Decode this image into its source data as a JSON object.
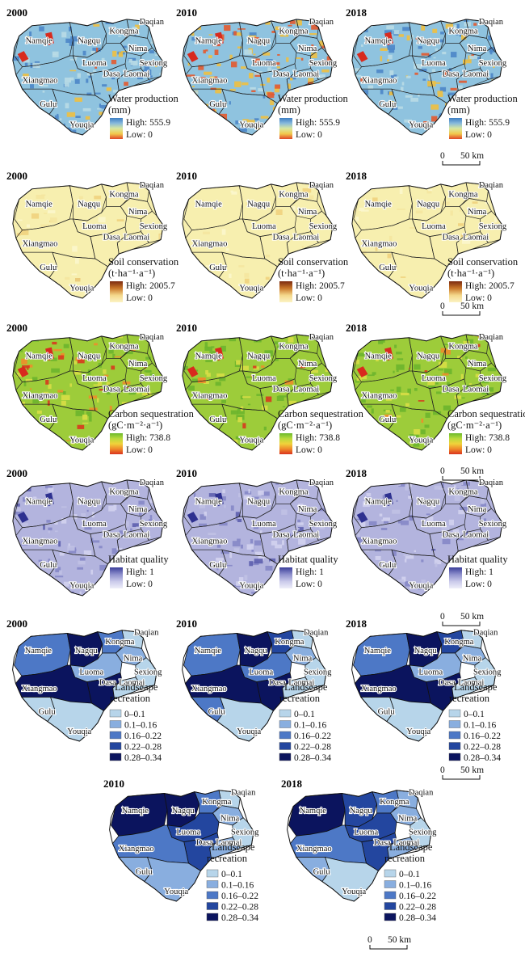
{
  "rows": [
    {
      "id": "water",
      "legend_title": "Water production",
      "legend_unit": "(mm)",
      "high": "High: 555.9",
      "low": "Low: 0",
      "colors": [
        "#3f7fc4",
        "#86b9dc",
        "#d8e8a0",
        "#f2c94c",
        "#e0472a"
      ],
      "base_color": "#8fc3df",
      "patch_colors": [
        "#4d86c8",
        "#f0c040",
        "#e35a2f",
        "#b9dbe6"
      ],
      "maps": [
        {
          "year": "2000",
          "patches": [
            0.45,
            0.18,
            0.05,
            0.32
          ]
        },
        {
          "year": "2010",
          "patches": [
            0.12,
            0.48,
            0.32,
            0.08
          ]
        },
        {
          "year": "2018",
          "patches": [
            0.38,
            0.22,
            0.08,
            0.32
          ]
        }
      ],
      "scale_under": 2
    },
    {
      "id": "soil",
      "legend_title": "Soil conservation",
      "legend_unit": "(t·ha⁻¹·a⁻¹)",
      "high": "High: 2005.7",
      "low": "Low: 0",
      "colors": [
        "#7b2a10",
        "#c9772a",
        "#f4d88a",
        "#fbf3c4"
      ],
      "base_color": "#f7efaf",
      "patch_colors": [
        "#efd27e",
        "#f4e6a0",
        "#fbf6cc",
        "#e9c777"
      ],
      "maps": [
        {
          "year": "2000",
          "patches": [
            0.06,
            0.1,
            0.1,
            0.02
          ]
        },
        {
          "year": "2010",
          "patches": [
            0.06,
            0.1,
            0.1,
            0.02
          ]
        },
        {
          "year": "2018",
          "patches": [
            0.06,
            0.1,
            0.1,
            0.02
          ]
        }
      ],
      "scale_under": 2
    },
    {
      "id": "carbon",
      "legend_title": "Carbon sequestration",
      "legend_unit": "(gC·m⁻²·a⁻¹)",
      "high": "High: 738.8",
      "low": "Low: 0",
      "colors": [
        "#6bb92e",
        "#b8da3c",
        "#f0d23a",
        "#ef8a2a",
        "#d9321e"
      ],
      "base_color": "#9dcc3a",
      "patch_colors": [
        "#6db52e",
        "#d8de46",
        "#ee8d2b",
        "#d83a1e"
      ],
      "maps": [
        {
          "year": "2000",
          "patches": [
            0.3,
            0.25,
            0.2,
            0.08
          ]
        },
        {
          "year": "2010",
          "patches": [
            0.4,
            0.2,
            0.08,
            0.03
          ]
        },
        {
          "year": "2018",
          "patches": [
            0.42,
            0.2,
            0.06,
            0.03
          ]
        }
      ],
      "scale_under": 2
    },
    {
      "id": "habitat",
      "legend_title": "Habitat quality",
      "legend_unit": "",
      "high": "High: 1",
      "low": "Low: 0",
      "colors": [
        "#3b3e9a",
        "#8d8fcc",
        "#c9c9ea",
        "#eeeef9"
      ],
      "base_color": "#b3b4de",
      "patch_colors": [
        "#8587c7",
        "#d2d2ee",
        "#5d5fae",
        "#c0c1e4"
      ],
      "maps": [
        {
          "year": "2000",
          "patches": [
            0.3,
            0.25,
            0.05,
            0.2
          ]
        },
        {
          "year": "2010",
          "patches": [
            0.34,
            0.2,
            0.06,
            0.2
          ]
        },
        {
          "year": "2018",
          "patches": [
            0.28,
            0.28,
            0.05,
            0.2
          ]
        }
      ],
      "scale_under": 2
    }
  ],
  "recreation_classes": [
    "0–0.1",
    "0.1–0.16",
    "0.16–0.22",
    "0.22–0.28",
    "0.28–0.34"
  ],
  "recreation_colors": [
    "#b7d5ea",
    "#89aedf",
    "#4d78c6",
    "#23469f",
    "#0b145e"
  ],
  "recreation_title": [
    "Landscape",
    "recreation"
  ],
  "recreation_maps": [
    {
      "year": "2000",
      "classes": {
        "Namqie": 2,
        "Nagqu": 4,
        "Kongma": 2,
        "Daqian": 0,
        "Nima": 1,
        "Sexiong": 0,
        "Laomai": 0,
        "Luoma": 1,
        "Dasa": 4,
        "Xiangmao": 4,
        "Gulu": 0,
        "Youqia": 0
      }
    },
    {
      "year": "2010",
      "classes": {
        "Namqie": 2,
        "Nagqu": 4,
        "Kongma": 3,
        "Daqian": 0,
        "Nima": 1,
        "Sexiong": 0,
        "Laomai": 0,
        "Luoma": 2,
        "Dasa": 4,
        "Xiangmao": 4,
        "Gulu": 2,
        "Youqia": 0
      }
    },
    {
      "year": "2018",
      "classes": {
        "Namqie": 2,
        "Nagqu": 4,
        "Kongma": 3,
        "Daqian": 0,
        "Nima": 1,
        "Sexiong": 0,
        "Laomai": 0,
        "Luoma": 1,
        "Dasa": 4,
        "Xiangmao": 4,
        "Gulu": 0,
        "Youqia": 0
      }
    },
    {
      "year": "2010",
      "classes": {
        "Namqie": 4,
        "Nagqu": 4,
        "Kongma": 2,
        "Daqian": 0,
        "Nima": 1,
        "Sexiong": 0,
        "Laomai": 1,
        "Luoma": 3,
        "Dasa": 3,
        "Xiangmao": 2,
        "Gulu": 1,
        "Youqia": 1
      }
    },
    {
      "year": "2018",
      "classes": {
        "Namqie": 4,
        "Nagqu": 3,
        "Kongma": 2,
        "Daqian": 1,
        "Nima": 1,
        "Sexiong": 0,
        "Laomai": 1,
        "Luoma": 3,
        "Dasa": 3,
        "Xiangmao": 2,
        "Gulu": 1,
        "Youqia": 0
      }
    }
  ],
  "scale_bar": {
    "zero": "0",
    "value": "50 km"
  },
  "regions": [
    "Daqian",
    "Kongma",
    "Namqie",
    "Nagqu",
    "Nima",
    "Sexiong",
    "Luoma",
    "Dasa",
    "Laomai",
    "Xiangmao",
    "Gulu",
    "Youqia"
  ]
}
